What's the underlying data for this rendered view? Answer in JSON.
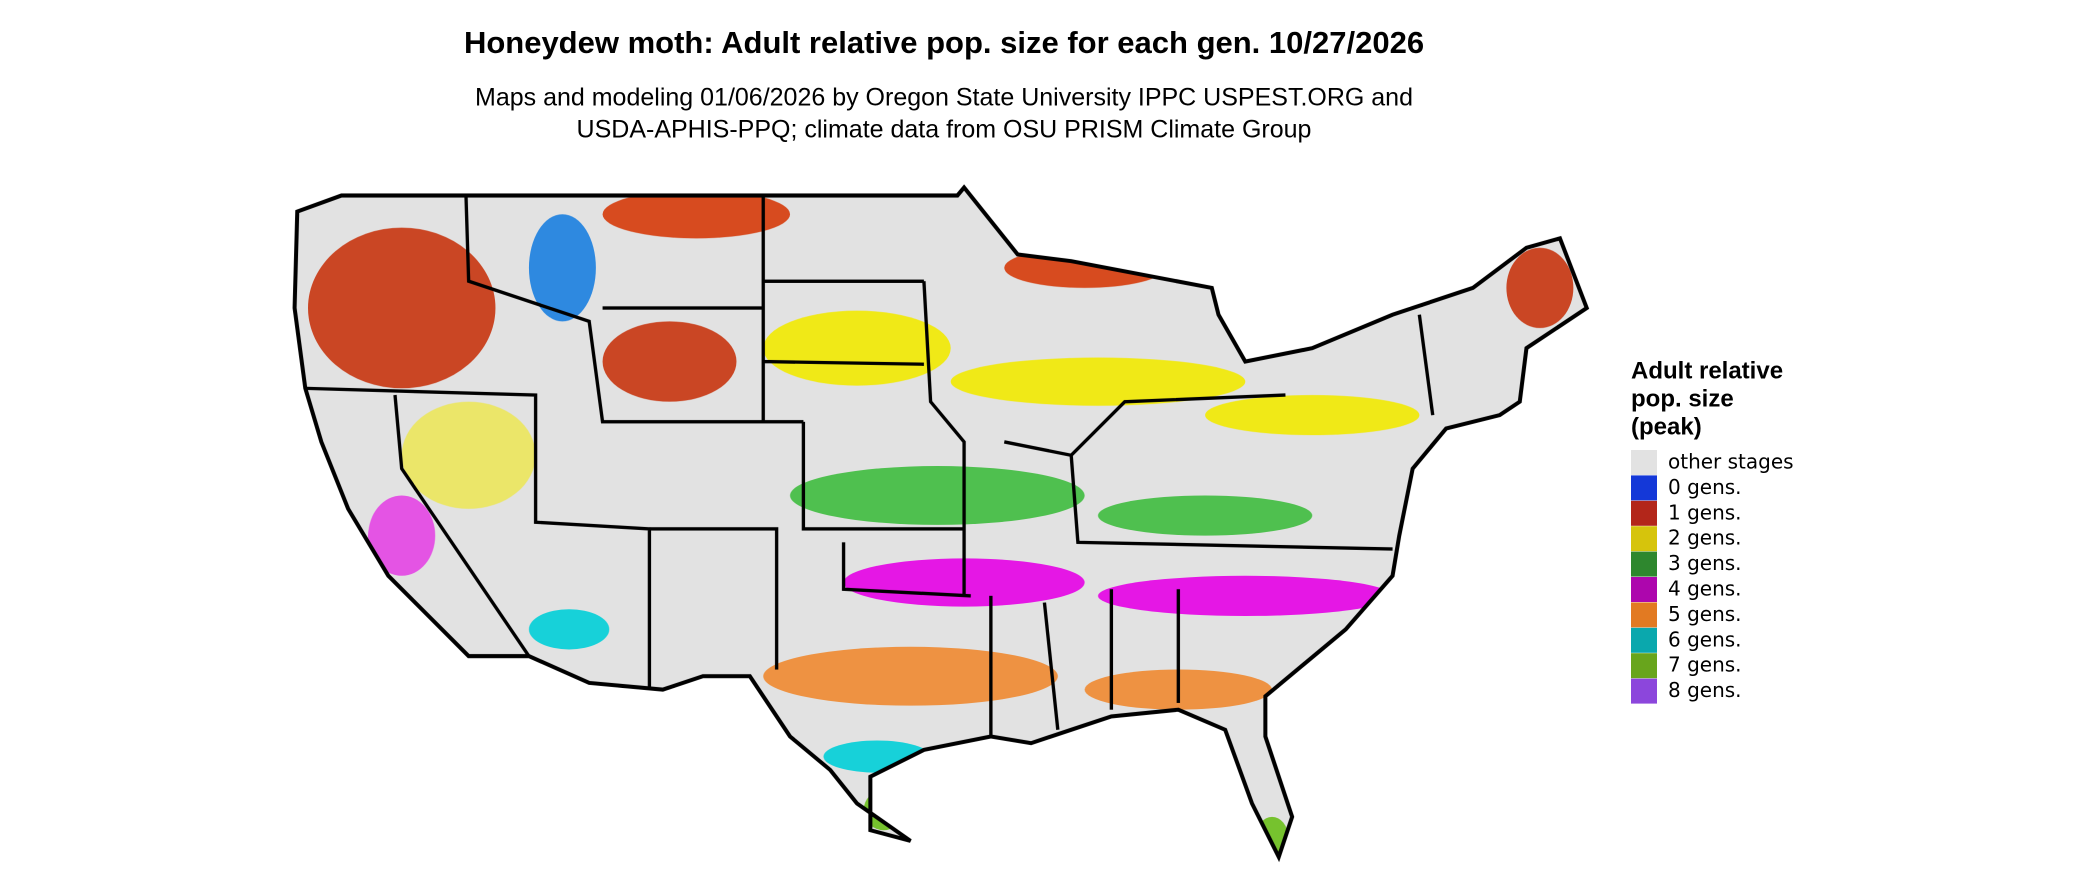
{
  "header": {
    "title": "Honeydew moth: Adult relative pop. size for each gen. 10/27/2026",
    "subtitle": [
      "Maps and modeling 01/06/2026 by Oregon State University IPPC USPEST.ORG and",
      "USDA-APHIS-PPQ; climate data from OSU PRISM Climate Group"
    ]
  },
  "legend": {
    "title": [
      "Adult relative",
      "pop. size",
      "(peak)"
    ],
    "items": [
      {
        "label": "other stages",
        "color": "#e2e2e2"
      },
      {
        "label": "0 gens.",
        "color": "#1438d8"
      },
      {
        "label": "1 gens.",
        "color": "#b3261a"
      },
      {
        "label": "2 gens.",
        "color": "#d6c40c"
      },
      {
        "label": "3 gens.",
        "color": "#2e872e"
      },
      {
        "label": "4 gens.",
        "color": "#ad06ad"
      },
      {
        "label": "5 gens.",
        "color": "#e27a22"
      },
      {
        "label": "6 gens.",
        "color": "#0aa8ad"
      },
      {
        "label": "7 gens.",
        "color": "#68a51c"
      },
      {
        "label": "8 gens.",
        "color": "#8c46dc"
      }
    ]
  }
}
